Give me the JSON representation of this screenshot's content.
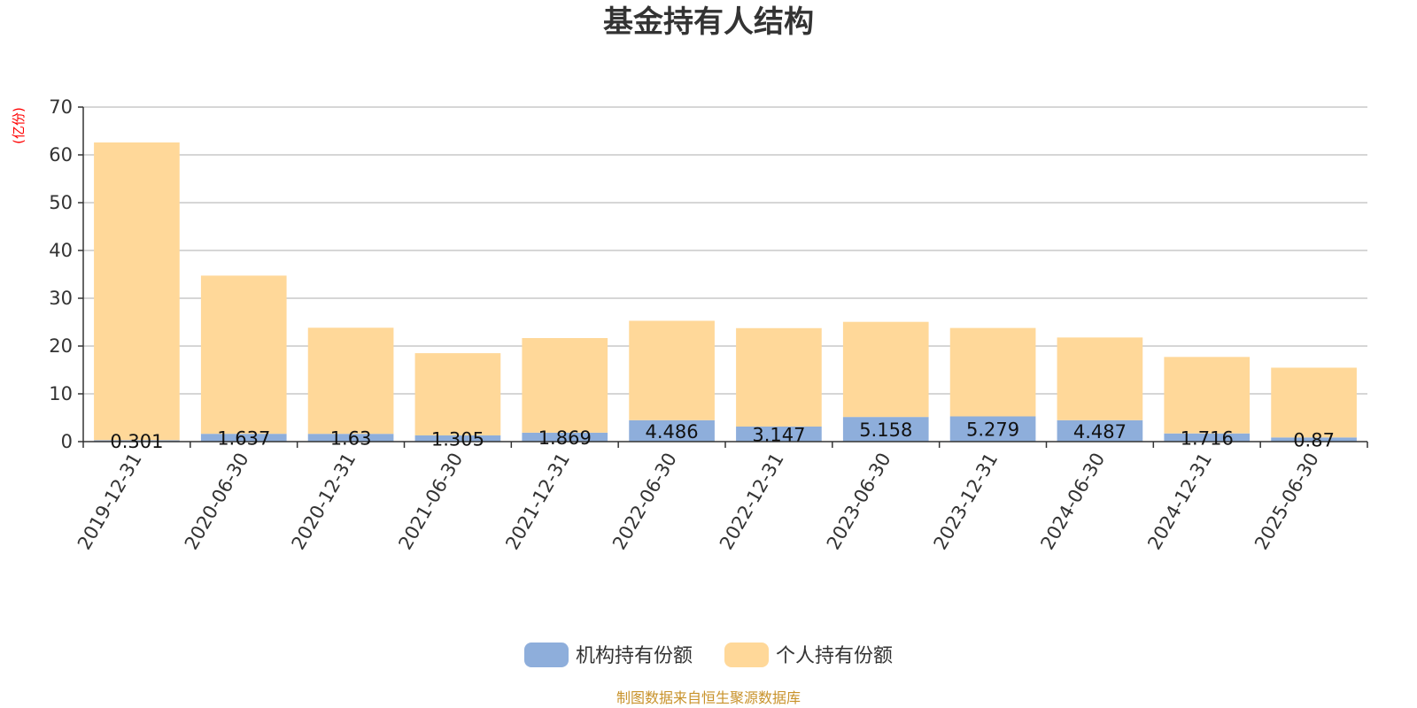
{
  "chart_data": {
    "type": "bar",
    "stacked": true,
    "title": "基金持有人结构",
    "unit_label": "(亿份)",
    "categories": [
      "2019-12-31",
      "2020-06-30",
      "2020-12-31",
      "2021-06-30",
      "2021-12-31",
      "2022-06-30",
      "2022-12-31",
      "2023-06-30",
      "2023-12-31",
      "2024-06-30",
      "2024-12-31",
      "2025-06-30"
    ],
    "series": [
      {
        "name": "机构持有份额",
        "color": "#8eaedb",
        "values": [
          0.301,
          1.637,
          1.63,
          1.305,
          1.869,
          4.486,
          3.147,
          5.158,
          5.279,
          4.487,
          1.716,
          0.87
        ],
        "labels": [
          "0.301",
          "1.637",
          "1.63",
          "1.305",
          "1.869",
          "4.486",
          "3.147",
          "5.158",
          "5.279",
          "4.487",
          "1.716",
          "0.87"
        ]
      },
      {
        "name": "个人持有份额",
        "color": "#ffd899",
        "values": [
          62.3,
          33.1,
          22.2,
          17.2,
          19.8,
          20.8,
          20.6,
          19.9,
          18.5,
          17.3,
          16.0,
          14.6
        ]
      }
    ],
    "ylim": [
      0,
      70
    ],
    "yticks": [
      0,
      10,
      20,
      30,
      40,
      50,
      60,
      70
    ],
    "grid": true,
    "legend_position": "bottom"
  },
  "footer": {
    "source": "制图数据来自恒生聚源数据库"
  }
}
